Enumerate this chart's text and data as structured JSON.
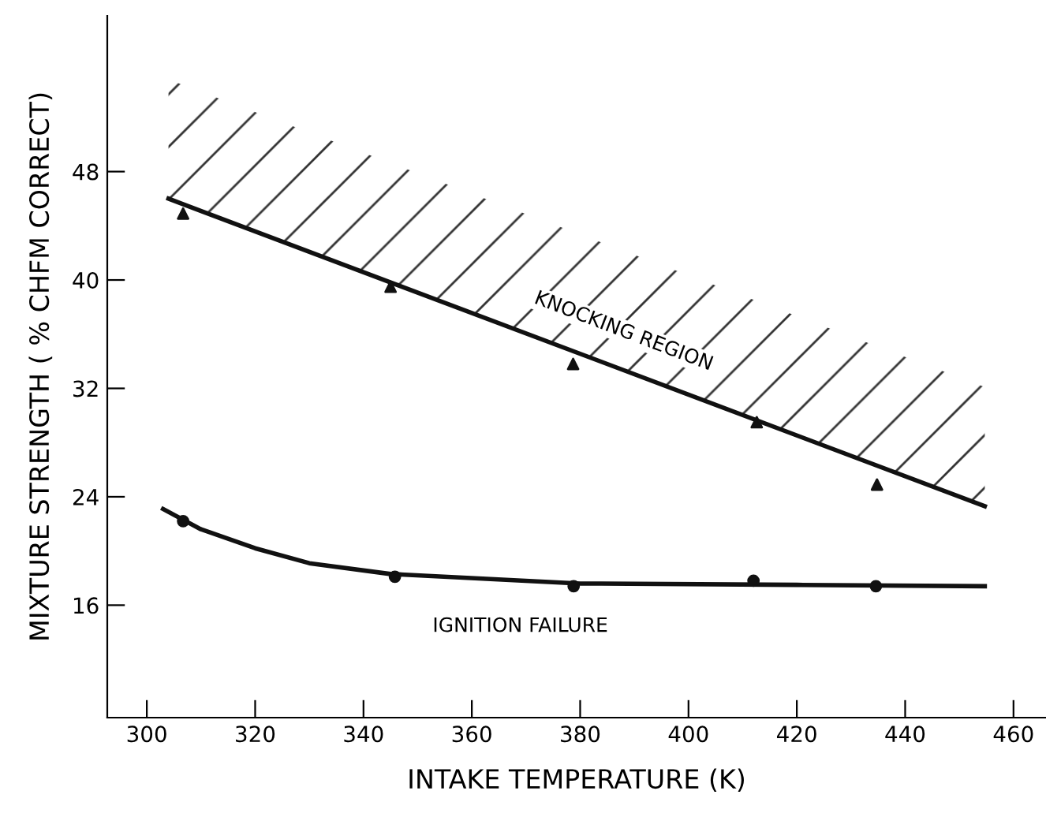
{
  "chart_data": {
    "type": "scatter",
    "xlabel": "INTAKE TEMPERATURE (K)",
    "ylabel": "MIXTURE STRENGTH ( % CHFM CORRECT)",
    "xlim": [
      292.7,
      466
    ],
    "ylim": [
      7.7,
      59.5
    ],
    "xticks": [
      300,
      320,
      340,
      360,
      380,
      400,
      420,
      440,
      460
    ],
    "yticks": [
      16,
      24,
      32,
      40,
      48
    ],
    "grid": false,
    "legend": false,
    "series": [
      {
        "marker": "triangle",
        "color": "#111111",
        "x": [
          306.7,
          345,
          378.7,
          412.6,
          434.8
        ],
        "values": [
          44.9,
          39.5,
          33.8,
          29.5,
          24.9
        ]
      },
      {
        "type": "line",
        "marker": "none",
        "line_style": "solid",
        "color": "#111111",
        "x": [
          304,
          454.7
        ],
        "values": [
          46,
          23.3
        ]
      },
      {
        "marker": "circle",
        "color": "#111111",
        "x": [
          306.7,
          345.8,
          378.8,
          412,
          434.6
        ],
        "values": [
          22.2,
          18.1,
          17.4,
          17.8,
          17.4
        ]
      },
      {
        "type": "line",
        "marker": "none",
        "line_style": "solid",
        "color": "#111111",
        "x": [
          303,
          310,
          320,
          330,
          345,
          380,
          420,
          454.7
        ],
        "values": [
          23.1,
          21.6,
          20.2,
          19.1,
          18.3,
          17.6,
          17.5,
          17.4
        ]
      }
    ],
    "annotations": [
      "KNOCKING REGION",
      "IGNITION FAILURE"
    ]
  }
}
